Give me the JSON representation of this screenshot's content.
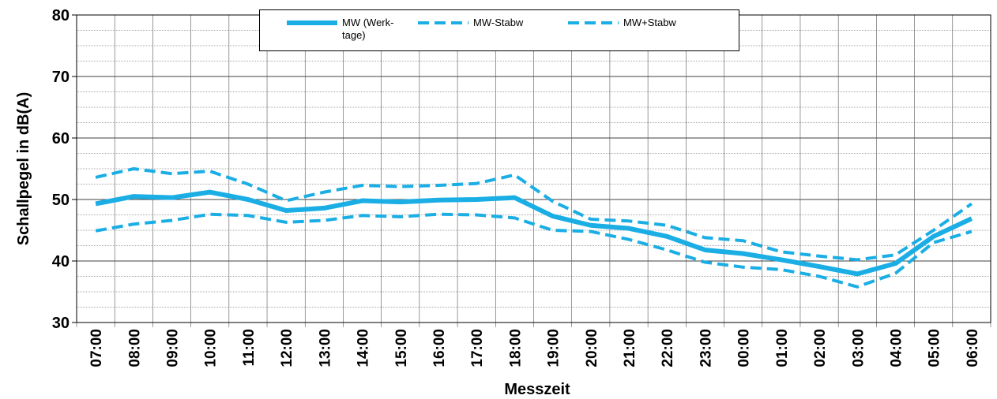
{
  "chart_data": {
    "type": "line",
    "y_label": "Schallpegel in dB(A)",
    "x_label": "Messzeit",
    "categories": [
      "07:00",
      "08:00",
      "09:00",
      "10:00",
      "11:00",
      "12:00",
      "13:00",
      "14:00",
      "15:00",
      "16:00",
      "17:00",
      "18:00",
      "19:00",
      "20:00",
      "21:00",
      "22:00",
      "23:00",
      "00:00",
      "01:00",
      "02:00",
      "03:00",
      "04:00",
      "05:00",
      "06:00"
    ],
    "series": [
      {
        "name": "MW (Werk-tage)",
        "color": "#1aaee5",
        "dash": "solid",
        "values": [
          49.3,
          50.5,
          50.3,
          51.2,
          50.0,
          48.2,
          48.6,
          49.8,
          49.6,
          49.9,
          50.0,
          50.3,
          47.3,
          45.8,
          45.3,
          44.0,
          41.8,
          41.2,
          40.2,
          39.1,
          37.9,
          39.6,
          44.0,
          46.9
        ]
      },
      {
        "name": "MW-Stabw",
        "color": "#1aaee5",
        "dash": "dashed",
        "values": [
          44.9,
          46.0,
          46.6,
          47.6,
          47.4,
          46.3,
          46.6,
          47.4,
          47.2,
          47.6,
          47.5,
          47.0,
          45.0,
          44.8,
          43.5,
          41.8,
          39.8,
          39.0,
          38.6,
          37.5,
          35.8,
          38.0,
          43.0,
          44.8
        ]
      },
      {
        "name": "MW+Stabw",
        "color": "#1aaee5",
        "dash": "dashed",
        "values": [
          53.6,
          55.0,
          54.2,
          54.6,
          52.5,
          49.8,
          51.2,
          52.3,
          52.1,
          52.3,
          52.6,
          54.0,
          49.7,
          46.8,
          46.5,
          45.8,
          43.8,
          43.3,
          41.5,
          40.8,
          40.2,
          41.0,
          45.0,
          49.3
        ]
      }
    ],
    "ylim": [
      30,
      80
    ],
    "yticks": [
      30,
      40,
      50,
      60,
      70,
      80
    ],
    "minor_yticks": [
      32.5,
      35,
      37.5,
      42.5,
      45,
      47.5,
      52.5,
      55,
      57.5,
      62.5,
      65,
      67.5,
      72.5,
      75,
      77.5
    ],
    "grid": true
  }
}
